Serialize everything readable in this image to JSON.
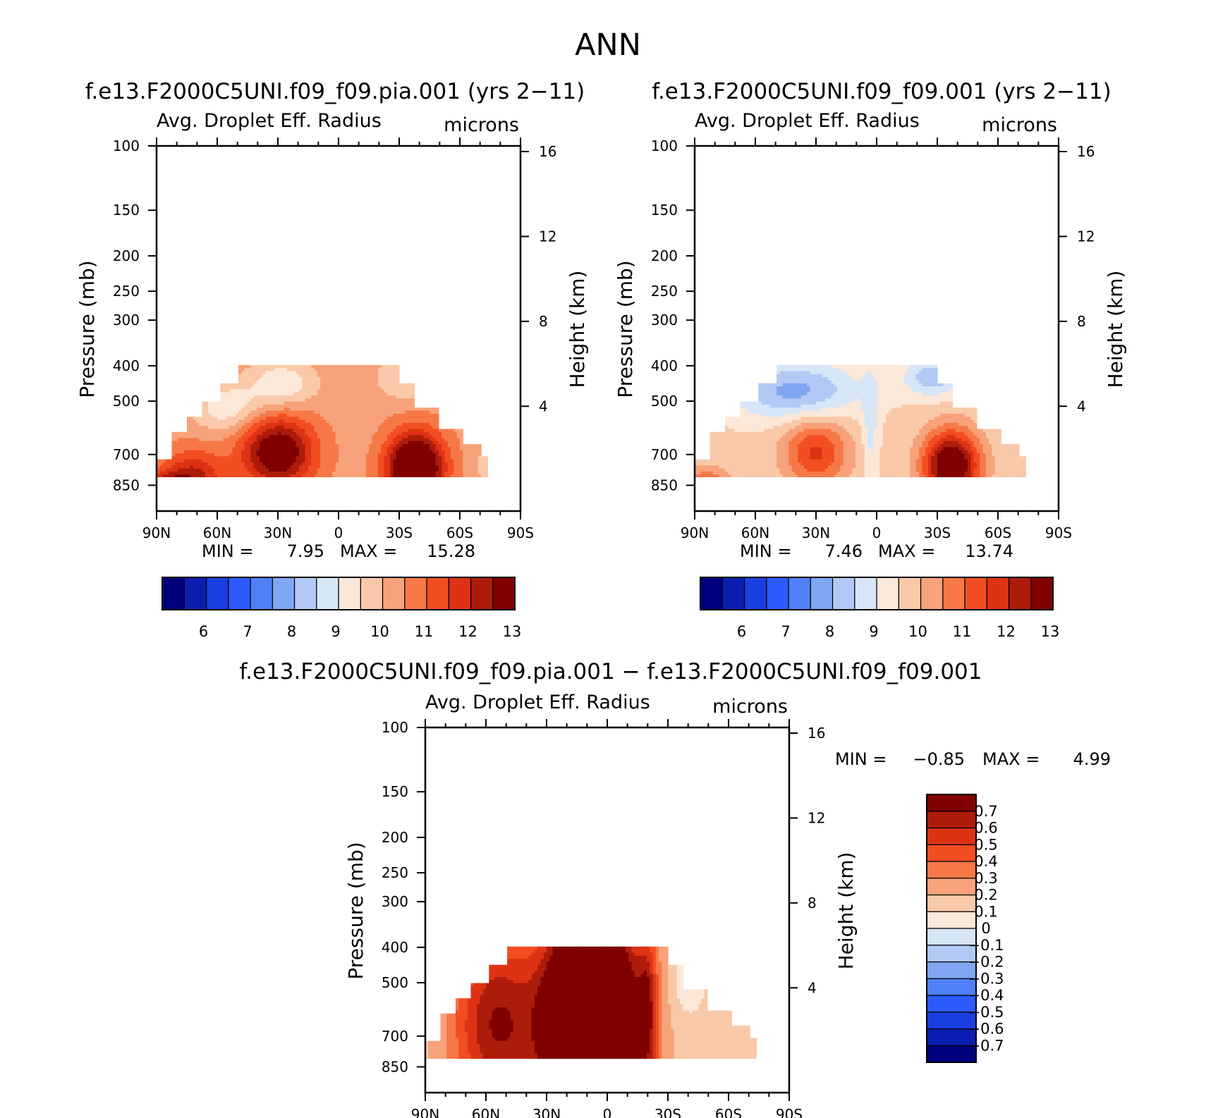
{
  "main_title": "ANN",
  "chart_data": [
    {
      "type": "heatmap",
      "title": "f.e13.F2000C5UNI.f09_f09.pia.001 (yrs 2-11)",
      "variable": "Avg. Droplet Eff. Radius",
      "units": "microns",
      "xlabel": "",
      "ylabel": "Pressure (mb)",
      "ylabel_right": "Height (km)",
      "x_ticks": [
        "90N",
        "60N",
        "30N",
        "0",
        "30S",
        "60S",
        "90S"
      ],
      "y_ticks": [
        "100",
        "150",
        "200",
        "250",
        "300",
        "400",
        "500",
        "700",
        "850"
      ],
      "y_ticks_right": [
        "16",
        "12",
        "8",
        "4"
      ],
      "stats": {
        "min_label": "MIN =",
        "min": "7.95",
        "max_label": "MAX =",
        "max": "15.28"
      },
      "colorbar": {
        "orientation": "horizontal",
        "labels": [
          "6",
          "7",
          "8",
          "9",
          "10",
          "11",
          "12",
          "13"
        ]
      },
      "features": [
        {
          "name": "NH midlatitude maximum",
          "lat": 30,
          "p": 700,
          "value": 13
        },
        {
          "name": "SH midlatitude maximum",
          "lat": -35,
          "p": 750,
          "value": 14
        },
        {
          "name": "NH polar surface maximum",
          "lat": 85,
          "p": 850,
          "value": 13
        },
        {
          "name": "upper minimum",
          "lat": 25,
          "p": 450,
          "value": 9
        }
      ]
    },
    {
      "type": "heatmap",
      "title": "f.e13.F2000C5UNI.f09_f09.001 (yrs 2-11)",
      "variable": "Avg. Droplet Eff. Radius",
      "units": "microns",
      "xlabel": "",
      "ylabel": "Pressure (mb)",
      "ylabel_right": "Height (km)",
      "x_ticks": [
        "90N",
        "60N",
        "30N",
        "0",
        "30S",
        "60S",
        "90S"
      ],
      "y_ticks": [
        "100",
        "150",
        "200",
        "250",
        "300",
        "400",
        "500",
        "700",
        "850"
      ],
      "y_ticks_right": [
        "16",
        "12",
        "8",
        "4"
      ],
      "stats": {
        "min_label": "MIN =",
        "min": "7.46",
        "max_label": "MAX =",
        "max": "13.74"
      },
      "colorbar": {
        "orientation": "horizontal",
        "labels": [
          "6",
          "7",
          "8",
          "9",
          "10",
          "11",
          "12",
          "13"
        ]
      },
      "features": [
        {
          "name": "NH midlatitude maximum",
          "lat": 30,
          "p": 700,
          "value": 12
        },
        {
          "name": "SH midlatitude maximum",
          "lat": -35,
          "p": 750,
          "value": 13.5
        },
        {
          "name": "upper minimum",
          "lat": 30,
          "p": 450,
          "value": 8
        }
      ]
    },
    {
      "type": "heatmap",
      "title": "f.e13.F2000C5UNI.f09_f09.pia.001 - f.e13.F2000C5UNI.f09_f09.001",
      "variable": "Avg. Droplet Eff. Radius",
      "units": "microns",
      "xlabel": "",
      "ylabel": "Pressure (mb)",
      "ylabel_right": "Height (km)",
      "x_ticks": [
        "90N",
        "60N",
        "30N",
        "0",
        "30S",
        "60S",
        "90S"
      ],
      "y_ticks": [
        "100",
        "150",
        "200",
        "250",
        "300",
        "400",
        "500",
        "700",
        "850"
      ],
      "y_ticks_right": [
        "16",
        "12",
        "8",
        "4"
      ],
      "stats": {
        "min_label": "MIN =",
        "min": "-0.85",
        "max_label": "MAX =",
        "max": "4.99"
      },
      "colorbar": {
        "orientation": "vertical",
        "labels": [
          "0.7",
          "0.6",
          "0.5",
          "0.4",
          "0.3",
          "0.2",
          "0.1",
          "0",
          "-0.1",
          "-0.2",
          "-0.3",
          "-0.4",
          "-0.5",
          "-0.6",
          "-0.7"
        ]
      },
      "features": [
        {
          "name": "tropical positive band",
          "lat_range": [
            30,
            -15
          ],
          "p_range": [
            400,
            1000
          ],
          "value": ">0.7"
        },
        {
          "name": "NH midlatitude positive",
          "lat_range": [
            75,
            30
          ],
          "value": "0.4 to 0.7"
        },
        {
          "name": "SH near-zero",
          "lat_range": [
            -30,
            -85
          ],
          "value": "0 to 0.1"
        }
      ]
    }
  ],
  "colors": {
    "palette": [
      "#00007f",
      "#0a1fb2",
      "#1a3fe0",
      "#2b5bff",
      "#4f80f5",
      "#80a6f2",
      "#b2c9f5",
      "#d6e6f7",
      "#fce8d8",
      "#f9c9a9",
      "#f7a27a",
      "#f77847",
      "#f24e21",
      "#de3214",
      "#ad1c0b",
      "#800000"
    ],
    "ocean": "#ffffff"
  }
}
